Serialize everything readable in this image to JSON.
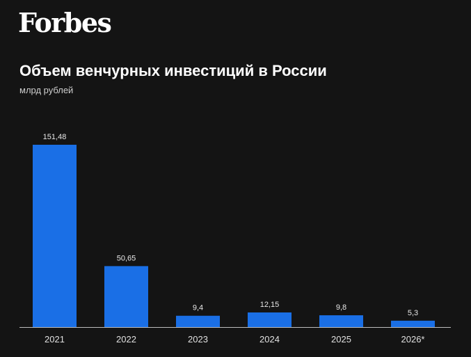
{
  "brand": {
    "logo_text": "Forbes"
  },
  "chart_data": {
    "type": "bar",
    "title": "Объем венчурных инвестиций в России",
    "subtitle": "млрд рублей",
    "categories": [
      "2021",
      "2022",
      "2023",
      "2024",
      "2025",
      "2026*"
    ],
    "values": [
      151.48,
      50.65,
      9.4,
      12.15,
      9.8,
      5.3
    ],
    "value_labels": [
      "151,48",
      "50,65",
      "9,4",
      "12,15",
      "9,8",
      "5,3"
    ],
    "ylim": [
      0,
      151.48
    ],
    "grid": false,
    "colors": {
      "bar": "#1a6fe6",
      "background": "#141414",
      "baseline": "#bdbdbd"
    }
  }
}
